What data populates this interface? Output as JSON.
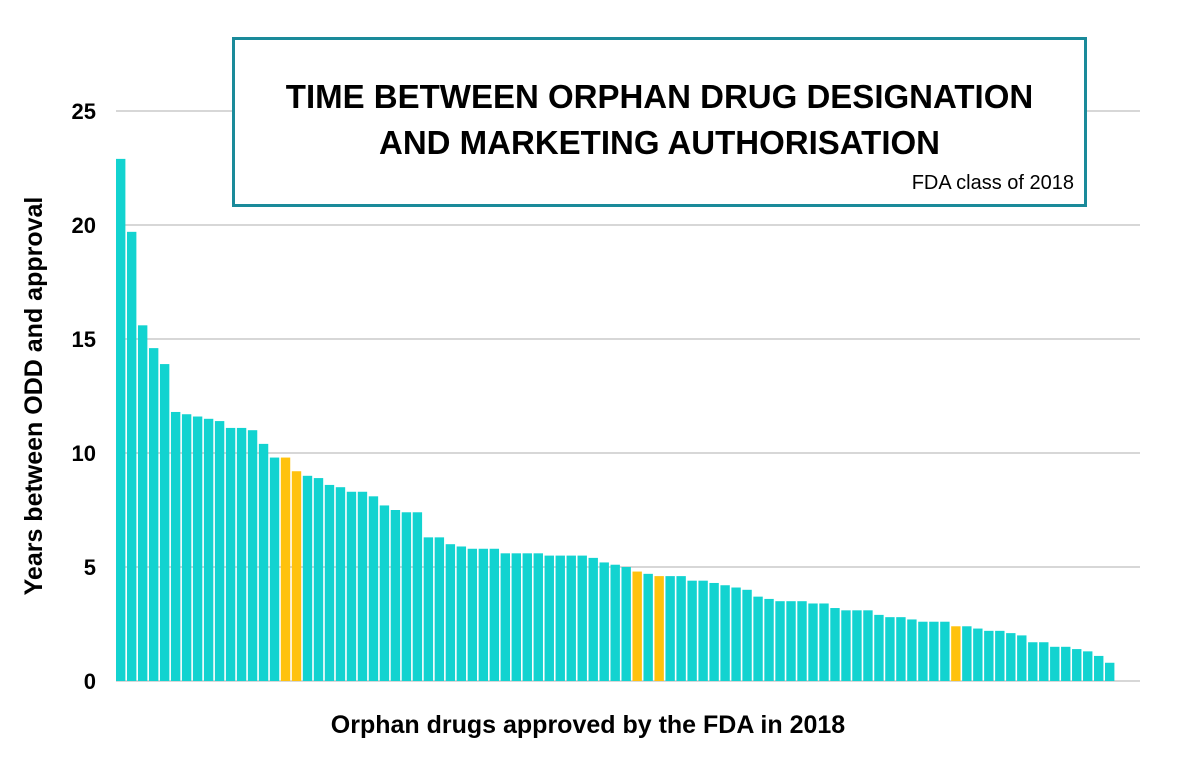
{
  "chart_data": {
    "type": "bar",
    "title": "TIME BETWEEN ORPHAN DRUG DESIGNATION\nAND MARKETING AUTHORISATION",
    "subtitle": "FDA class of 2018",
    "xlabel": "Orphan drugs approved by the FDA in 2018",
    "ylabel": "Years between ODD and approval",
    "ylim": [
      0,
      25
    ],
    "yticks": [
      0,
      5,
      10,
      15,
      20,
      25
    ],
    "grid": true,
    "colors": {
      "default": "#12d3d0",
      "highlight": "#ffc20e",
      "grid": "#bfbfbf",
      "box_border": "#1a8a9a"
    },
    "values": [
      22.9,
      19.7,
      15.6,
      14.6,
      13.9,
      11.8,
      11.7,
      11.6,
      11.5,
      11.4,
      11.1,
      11.1,
      11.0,
      10.4,
      9.8,
      9.8,
      9.2,
      9.0,
      8.9,
      8.6,
      8.5,
      8.3,
      8.3,
      8.1,
      7.7,
      7.5,
      7.4,
      7.4,
      6.3,
      6.3,
      6.0,
      5.9,
      5.8,
      5.8,
      5.8,
      5.6,
      5.6,
      5.6,
      5.6,
      5.5,
      5.5,
      5.5,
      5.5,
      5.4,
      5.2,
      5.1,
      5.0,
      4.8,
      4.7,
      4.6,
      4.6,
      4.6,
      4.4,
      4.4,
      4.3,
      4.2,
      4.1,
      4.0,
      3.7,
      3.6,
      3.5,
      3.5,
      3.5,
      3.4,
      3.4,
      3.2,
      3.1,
      3.1,
      3.1,
      2.9,
      2.8,
      2.8,
      2.7,
      2.6,
      2.6,
      2.6,
      2.4,
      2.4,
      2.3,
      2.2,
      2.2,
      2.1,
      2.0,
      1.7,
      1.7,
      1.5,
      1.5,
      1.4,
      1.3,
      1.1,
      0.8
    ],
    "highlighted_indices": [
      15,
      16,
      47,
      49,
      76
    ]
  }
}
